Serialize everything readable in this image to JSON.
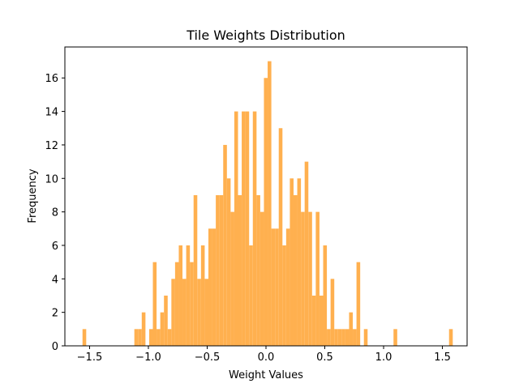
{
  "chart_data": {
    "type": "bar",
    "title": "Tile Weights Distribution",
    "xlabel": "Weight Values",
    "ylabel": "Frequency",
    "xlim": [
      -1.71,
      1.71
    ],
    "ylim": [
      0,
      17.85
    ],
    "x_ticks": [
      -1.5,
      -1.0,
      -0.5,
      0.0,
      0.5,
      1.0,
      1.5
    ],
    "x_tick_labels": [
      "−1.5",
      "−1.0",
      "−0.5",
      "0.0",
      "0.5",
      "1.0",
      "1.5"
    ],
    "y_ticks": [
      0,
      2,
      4,
      6,
      8,
      10,
      12,
      14,
      16
    ],
    "y_tick_labels": [
      "0",
      "2",
      "4",
      "6",
      "8",
      "10",
      "12",
      "14",
      "16"
    ],
    "bin_start": -1.56,
    "bin_end": 1.588,
    "bin_count": 100,
    "values": [
      1,
      0,
      0,
      0,
      0,
      0,
      0,
      0,
      0,
      0,
      0,
      0,
      0,
      0,
      1,
      1,
      2,
      0,
      1,
      5,
      1,
      2,
      3,
      1,
      4,
      5,
      6,
      4,
      6,
      5,
      9,
      4,
      6,
      4,
      7,
      7,
      9,
      9,
      12,
      10,
      8,
      14,
      9,
      14,
      14,
      6,
      14,
      9,
      8,
      16,
      17,
      7,
      7,
      13,
      6,
      7,
      10,
      9,
      10,
      8,
      11,
      8,
      3,
      8,
      3,
      6,
      1,
      4,
      1,
      1,
      1,
      1,
      2,
      1,
      5,
      0,
      1,
      0,
      0,
      0,
      0,
      0,
      0,
      0,
      1,
      0,
      0,
      0,
      0,
      0,
      0,
      0,
      0,
      0,
      0,
      0,
      0,
      0,
      0,
      1
    ],
    "bar_color": "#ffb04f",
    "grid": false,
    "legend": "none"
  }
}
